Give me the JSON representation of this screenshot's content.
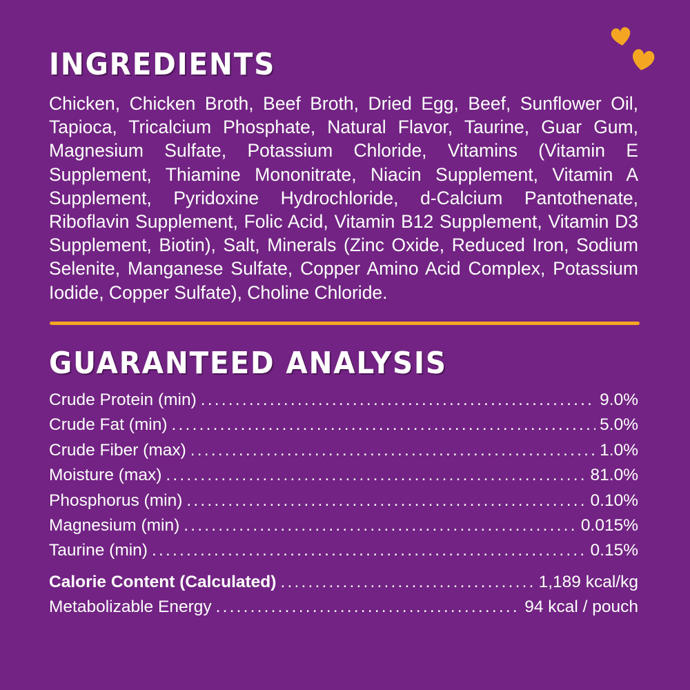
{
  "colors": {
    "background": "#722383",
    "accent": "#f4a623",
    "text": "#ffffff"
  },
  "decoration": {
    "icon": "hearts-icon"
  },
  "ingredients": {
    "title": "INGREDIENTS",
    "text": "Chicken, Chicken Broth, Beef Broth, Dried Egg, Beef, Sunflower Oil, Tapioca, Tricalcium Phosphate, Natural Flavor, Taurine, Guar Gum, Magnesium Sulfate, Potassium Chloride, Vitamins (Vitamin E Supplement, Thiamine Mononitrate, Niacin Supplement, Vitamin A Supplement, Pyridoxine Hydrochloride, d-Calcium Pantothenate, Riboflavin Supplement, Folic Acid, Vitamin B12 Supplement, Vitamin D3 Supplement, Biotin), Salt, Minerals (Zinc Oxide, Reduced Iron, Sodium Selenite, Manganese Sulfate, Copper Amino Acid Complex, Potassium Iodide, Copper Sulfate), Choline Chloride."
  },
  "analysis": {
    "title": "GUARANTEED ANALYSIS",
    "rows": [
      {
        "label": "Crude Protein (min)",
        "value": "9.0%"
      },
      {
        "label": "Crude Fat (min)",
        "value": "5.0%"
      },
      {
        "label": "Crude Fiber (max)",
        "value": "1.0%"
      },
      {
        "label": "Moisture (max)",
        "value": "81.0%"
      },
      {
        "label": "Phosphorus (min)",
        "value": "0.10%"
      },
      {
        "label": "Magnesium (min)",
        "value": "0.015%"
      },
      {
        "label": "Taurine (min)",
        "value": "0.15%"
      }
    ],
    "calorie": [
      {
        "label": "Calorie Content (Calculated)",
        "value": "1,189 kcal/kg"
      },
      {
        "label": "Metabolizable Energy",
        "value": "94 kcal / pouch"
      }
    ]
  }
}
